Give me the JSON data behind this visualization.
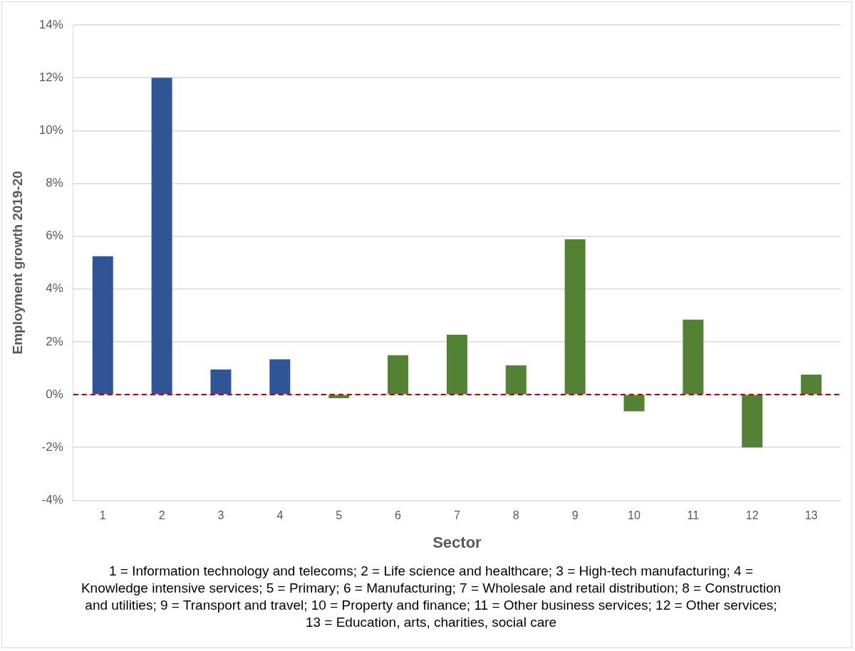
{
  "chart_data": {
    "type": "bar",
    "xlabel": "Sector",
    "ylabel": "Employment growth 2019-20",
    "categories": [
      "1",
      "2",
      "3",
      "4",
      "5",
      "6",
      "7",
      "8",
      "9",
      "10",
      "11",
      "12",
      "13"
    ],
    "values": [
      5.24,
      12.0,
      0.95,
      1.34,
      -0.13,
      1.49,
      2.27,
      1.11,
      5.88,
      -0.63,
      2.84,
      -2.0,
      0.76
    ],
    "colors": [
      "#2f5597",
      "#2f5597",
      "#2f5597",
      "#2f5597",
      "#548235",
      "#548235",
      "#548235",
      "#548235",
      "#548235",
      "#548235",
      "#548235",
      "#548235",
      "#548235"
    ],
    "ylim": [
      -4,
      14
    ],
    "yticks": [
      {
        "value": -4,
        "label": "-4%"
      },
      {
        "value": -2,
        "label": "-2%"
      },
      {
        "value": 0,
        "label": "0%"
      },
      {
        "value": 2,
        "label": "2%"
      },
      {
        "value": 4,
        "label": "4%"
      },
      {
        "value": 6,
        "label": "6%"
      },
      {
        "value": 8,
        "label": "8%"
      },
      {
        "value": 10,
        "label": "10%"
      },
      {
        "value": 12,
        "label": "12%"
      },
      {
        "value": 14,
        "label": "14%"
      }
    ],
    "grid": "y",
    "ref_lines": [
      {
        "axis": "y",
        "value": 0,
        "color": "#c00000",
        "line_style": "dashed"
      }
    ],
    "annotations": [
      "1 = Information technology and telecoms; 2 = Life science and healthcare; 3 = High-tech manufacturing; 4 = Knowledge intensive services; 5 = Primary; 6 = Manufacturing; 7 = Wholesale and retail distribution; 8 = Construction and utilities; 9 = Transport and travel; 10 = Property and finance; 11 = Other business services; 12 = Other services; 13 = Education, arts, charities, social care"
    ]
  }
}
